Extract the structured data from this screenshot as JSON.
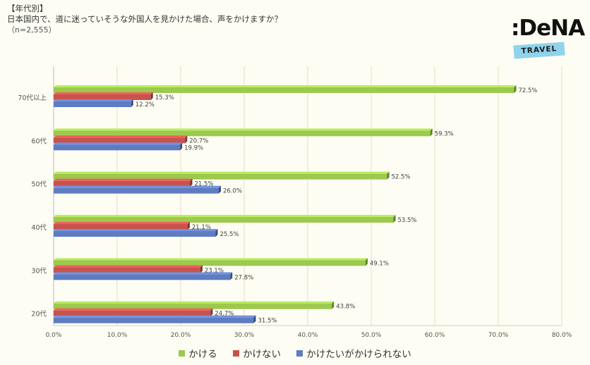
{
  "header": {
    "tag": "【年代別】",
    "question": "日本国内で、道に迷っていそうな外国人を見かけた場合、声をかけますか？",
    "sample": "（n=2,555）"
  },
  "logo": {
    "text": ":DeNA",
    "band": "TRAVEL"
  },
  "colors": {
    "kakeru": "#9dc94e",
    "kakenai": "#c9524d",
    "kaketai": "#5f7cc0"
  },
  "chart_data": {
    "type": "bar",
    "orientation": "horizontal",
    "categories": [
      "70代以上",
      "60代",
      "50代",
      "40代",
      "30代",
      "20代"
    ],
    "series": [
      {
        "name": "かける",
        "values": [
          72.5,
          59.3,
          52.5,
          53.5,
          49.1,
          43.8
        ]
      },
      {
        "name": "かけない",
        "values": [
          15.3,
          20.7,
          21.5,
          21.1,
          23.1,
          24.7
        ]
      },
      {
        "name": "かけたいがかけられない",
        "values": [
          12.2,
          19.9,
          26.0,
          25.5,
          27.8,
          31.5
        ]
      }
    ],
    "data_labels": [
      [
        "72.5%",
        "59.3%",
        "52.5%",
        "53.5%",
        "49.1%",
        "43.8%"
      ],
      [
        "15.3%",
        "20.7%",
        "21.5%",
        "21.1%",
        "23.1%",
        "24.7%"
      ],
      [
        "12.2%",
        "19.9%",
        "26.0%",
        "25.5%",
        "27.8%",
        "31.5%"
      ]
    ],
    "xlim": [
      0,
      80
    ],
    "x_ticks": [
      "0.0%",
      "10.0%",
      "20.0%",
      "30.0%",
      "40.0%",
      "50.0%",
      "60.0%",
      "70.0%",
      "80.0%"
    ],
    "grid": true,
    "legend_position": "bottom"
  }
}
